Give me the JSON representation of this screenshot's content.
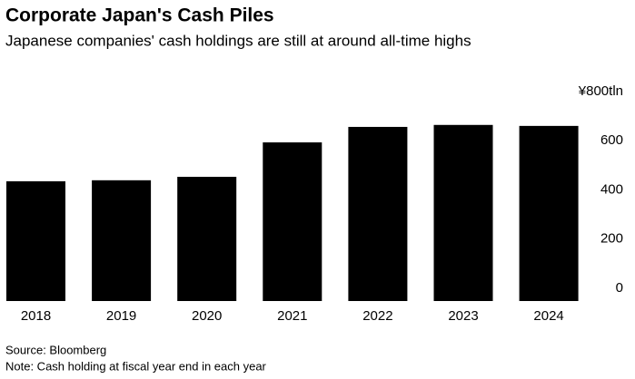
{
  "chart_data": {
    "type": "bar",
    "title": "Corporate Japan's Cash Piles",
    "subtitle": "Japanese companies' cash holdings are still at around all-time highs",
    "categories": [
      "2018",
      "2019",
      "2020",
      "2021",
      "2022",
      "2023",
      "2024"
    ],
    "values": [
      487,
      491,
      505,
      645,
      708,
      716,
      712
    ],
    "color": "#000000",
    "ylim": [
      0,
      800
    ],
    "yticks": [
      0,
      200,
      400,
      600,
      {
        "value": 800,
        "label": "¥800tln"
      }
    ],
    "grid": false,
    "source": "Source: Bloomberg",
    "note": "Note: Cash holding at fiscal year end in each year"
  }
}
